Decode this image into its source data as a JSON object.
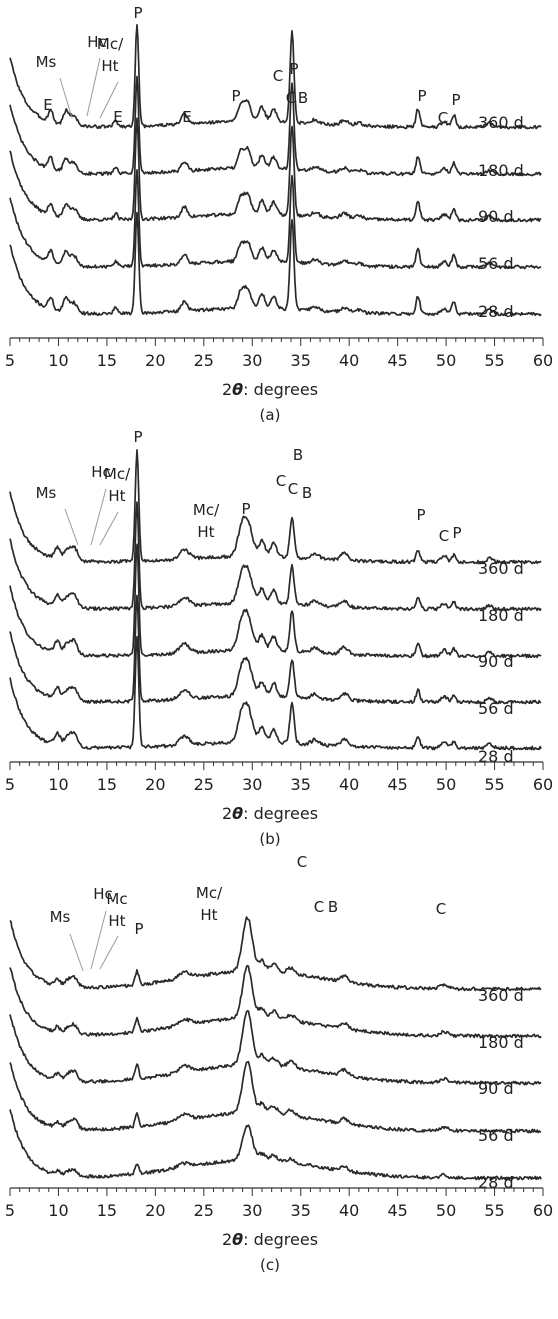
{
  "chart_data": [
    {
      "type": "line",
      "panel": "(a)",
      "xlabel_prefix": "2",
      "xlabel_symbol": "θ",
      "xlabel_suffix": ": degrees",
      "xlim": [
        5,
        60
      ],
      "ticks": [
        "5",
        "10",
        "15",
        "20",
        "25",
        "30",
        "35",
        "40",
        "45",
        "50",
        "55",
        "60"
      ],
      "series": [
        {
          "name": "360 d"
        },
        {
          "name": "180 d"
        },
        {
          "name": "90 d"
        },
        {
          "name": "56 d"
        },
        {
          "name": "28 d"
        }
      ],
      "annotations": [
        {
          "text": "Ms",
          "x": 9.9
        },
        {
          "text": "Hc",
          "x": 10.9
        },
        {
          "text": "Mc/",
          "x": 11.6
        },
        {
          "text": "Ht",
          "x": 11.6
        },
        {
          "text": "E",
          "x": 9.2
        },
        {
          "text": "E",
          "x": 15.9
        },
        {
          "text": "E",
          "x": 23.0
        },
        {
          "text": "P",
          "x": 18.1
        },
        {
          "text": "P",
          "x": 28.8
        },
        {
          "text": "C",
          "x": 29.5
        },
        {
          "text": "C",
          "x": 31.0
        },
        {
          "text": "B",
          "x": 32.2
        },
        {
          "text": "P",
          "x": 34.1
        },
        {
          "text": "P",
          "x": 47.1
        },
        {
          "text": "C",
          "x": 49.8
        },
        {
          "text": "P",
          "x": 50.8
        }
      ]
    },
    {
      "type": "line",
      "panel": "(b)",
      "xlabel_prefix": "2",
      "xlabel_symbol": "θ",
      "xlabel_suffix": ": degrees",
      "xlim": [
        5,
        60
      ],
      "ticks": [
        "5",
        "10",
        "15",
        "20",
        "25",
        "30",
        "35",
        "40",
        "45",
        "50",
        "55",
        "60"
      ],
      "series": [
        {
          "name": "360 d"
        },
        {
          "name": "180 d"
        },
        {
          "name": "90 d"
        },
        {
          "name": "56 d"
        },
        {
          "name": "28 d"
        }
      ],
      "annotations": [
        {
          "text": "Ms",
          "x": 9.9
        },
        {
          "text": "Hc",
          "x": 10.9
        },
        {
          "text": "Mc/",
          "x": 11.6
        },
        {
          "text": "Ht",
          "x": 11.6
        },
        {
          "text": "P",
          "x": 18.1
        },
        {
          "text": "Mc/",
          "x": 23.0
        },
        {
          "text": "Ht",
          "x": 23.0
        },
        {
          "text": "P",
          "x": 28.8
        },
        {
          "text": "C",
          "x": 29.5
        },
        {
          "text": "C",
          "x": 31.0
        },
        {
          "text": "B",
          "x": 32.2
        },
        {
          "text": "B",
          "x": 34.1
        },
        {
          "text": "P",
          "x": 47.1
        },
        {
          "text": "C",
          "x": 49.8
        },
        {
          "text": "P",
          "x": 50.8
        }
      ]
    },
    {
      "type": "line",
      "panel": "(c)",
      "xlabel_prefix": "2",
      "xlabel_symbol": "θ",
      "xlabel_suffix": ": degrees",
      "xlim": [
        5,
        60
      ],
      "ticks": [
        "5",
        "10",
        "15",
        "20",
        "25",
        "30",
        "35",
        "40",
        "45",
        "50",
        "55",
        "60"
      ],
      "series": [
        {
          "name": "360 d"
        },
        {
          "name": "180 d"
        },
        {
          "name": "90 d"
        },
        {
          "name": "56 d"
        },
        {
          "name": "28 d"
        }
      ],
      "annotations": [
        {
          "text": "Ms",
          "x": 9.9
        },
        {
          "text": "Hc",
          "x": 10.9
        },
        {
          "text": "Mc",
          "x": 11.6
        },
        {
          "text": "Ht",
          "x": 11.6
        },
        {
          "text": "P",
          "x": 18.1
        },
        {
          "text": "Mc/",
          "x": 23.0
        },
        {
          "text": "Ht",
          "x": 23.0
        },
        {
          "text": "C",
          "x": 29.5
        },
        {
          "text": "C",
          "x": 31.0
        },
        {
          "text": "B",
          "x": 32.2
        },
        {
          "text": "C",
          "x": 49.8
        }
      ]
    }
  ]
}
